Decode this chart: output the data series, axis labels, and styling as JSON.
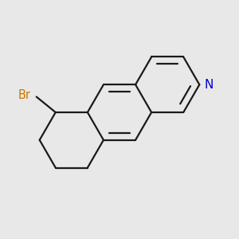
{
  "background_color": "#e8e8e8",
  "bond_color": "#1a1a1a",
  "N_color": "#0000cc",
  "Br_color": "#cc7700",
  "bond_width": 1.6,
  "figsize": [
    3.0,
    3.0
  ],
  "dpi": 100
}
